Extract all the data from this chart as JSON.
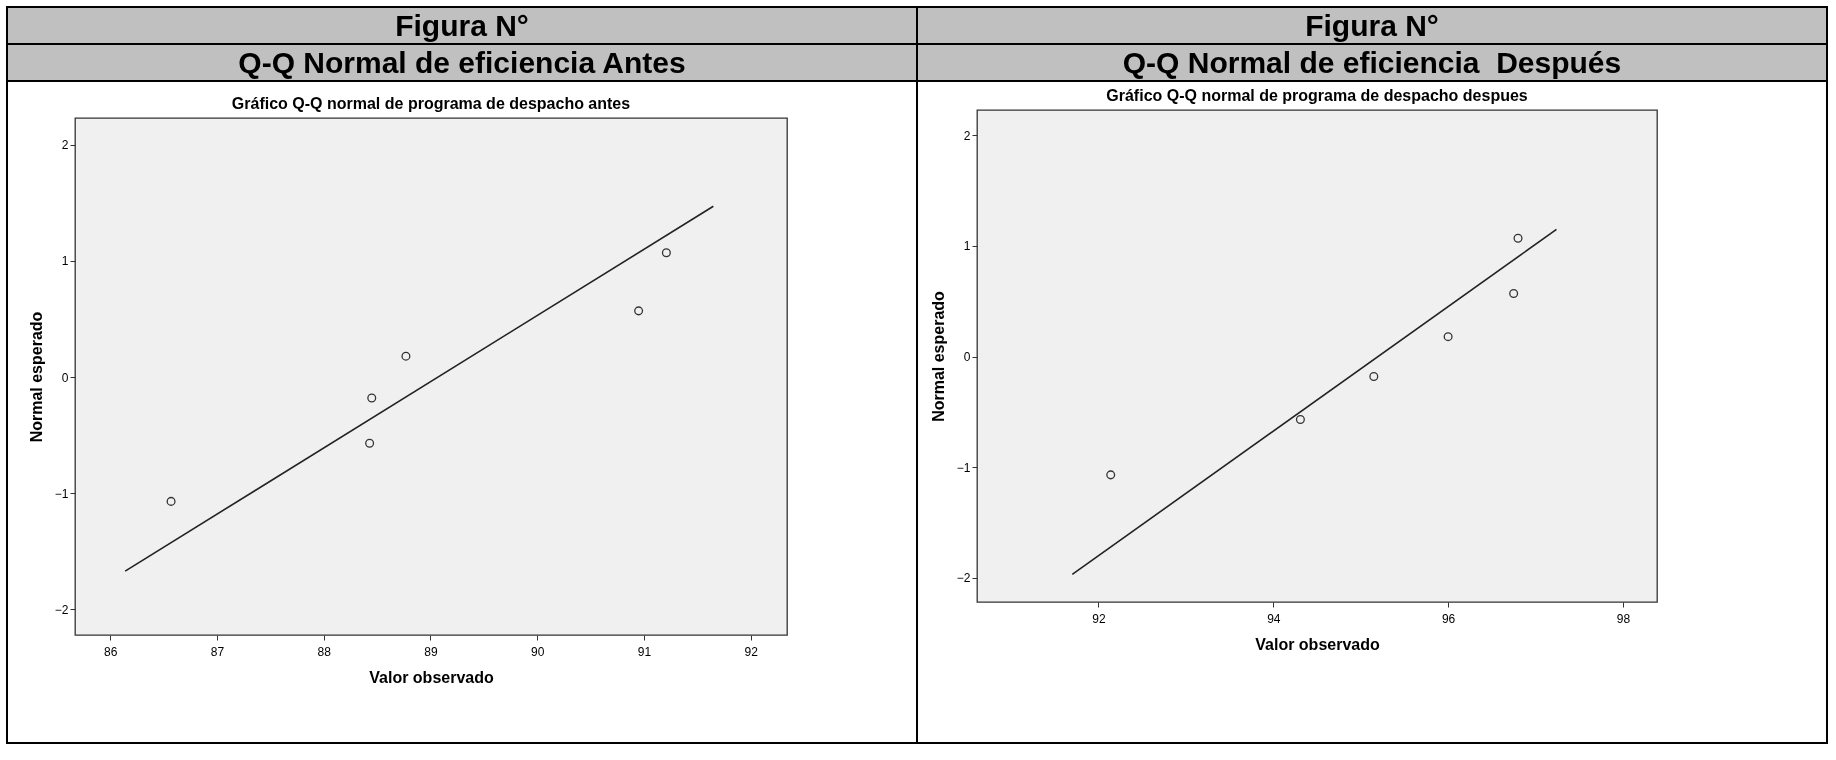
{
  "chart_data": [
    {
      "type": "scatter",
      "title": "Figura N°",
      "subtitle": "Q-Q Normal de eficiencia Antes",
      "annotations": [
        "Gráfico Q-Q normal de programa de despacho antes"
      ],
      "xlabel": "Valor observado",
      "ylabel": "Normal esperado",
      "xlim": [
        85.67,
        92.34
      ],
      "xticks": [
        86,
        87,
        88,
        89,
        90,
        91,
        92
      ],
      "ylim": [
        -2.22,
        2.23
      ],
      "yticks": [
        -2,
        -1,
        0,
        1,
        2
      ],
      "series": [
        {
          "color": "#333333",
          "marker": "circle",
          "x": [
            86.57,
            88.43,
            88.45,
            88.77,
            90.95,
            91.21
          ],
          "values": [
            -1.07,
            -0.57,
            -0.18,
            0.18,
            0.57,
            1.07
          ]
        },
        {
          "type": "line",
          "color": "#222222",
          "x": [
            86.14,
            91.65
          ],
          "values": [
            -1.67,
            1.47
          ]
        }
      ]
    },
    {
      "type": "scatter",
      "title": "Figura N°",
      "subtitle": "Q-Q Normal de eficiencia  Después",
      "annotations": [
        "Gráfico Q-Q normal de programa de despacho despues"
      ],
      "xlabel": "Valor observado",
      "ylabel": "Normal esperado",
      "xlim": [
        90.61,
        98.39
      ],
      "xticks": [
        92,
        94,
        96,
        98
      ],
      "ylim": [
        -2.22,
        2.23
      ],
      "yticks": [
        -2,
        -1,
        0,
        1,
        2
      ],
      "series": [
        {
          "color": "#333333",
          "marker": "circle",
          "x": [
            92.14,
            94.31,
            95.15,
            96.0,
            96.75,
            96.8
          ],
          "values": [
            -1.07,
            -0.57,
            -0.18,
            0.18,
            0.57,
            1.07
          ]
        },
        {
          "type": "line",
          "color": "#222222",
          "x": [
            91.7,
            97.24
          ],
          "values": [
            -1.97,
            1.15
          ]
        }
      ]
    }
  ]
}
